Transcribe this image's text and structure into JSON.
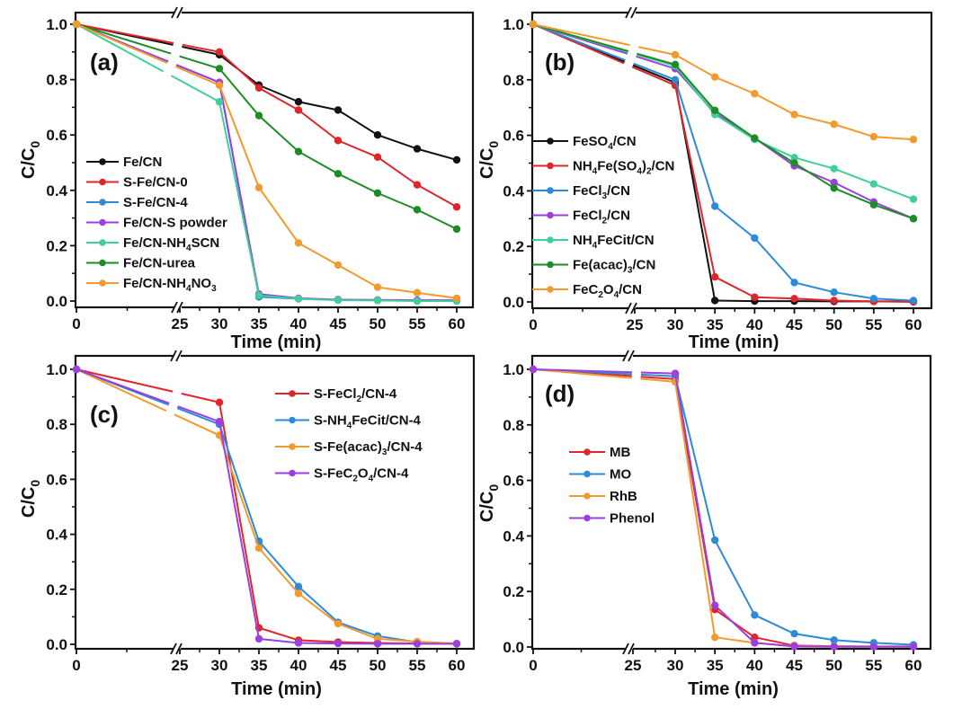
{
  "figure": {
    "background": "#ffffff"
  },
  "chart_data": [
    {
      "id": "a",
      "type": "line",
      "panel_label": "(a)",
      "xlabel": "Time (min)",
      "ylabel": "C/C0",
      "ylabel_main": "C/C",
      "ylabel_sub": "0",
      "x": [
        0,
        30,
        35,
        40,
        45,
        50,
        55,
        60
      ],
      "xticks": [
        0,
        25,
        30,
        35,
        40,
        45,
        50,
        55,
        60
      ],
      "xtick_labels": [
        "0",
        "25",
        "30",
        "35",
        "40",
        "45",
        "50",
        "55",
        "60"
      ],
      "axis_break": [
        0,
        25
      ],
      "yticks": [
        0.0,
        0.2,
        0.4,
        0.6,
        0.8,
        1.0
      ],
      "ytick_labels": [
        "0.0",
        "0.2",
        "0.4",
        "0.6",
        "0.8",
        "1.0"
      ],
      "ylim": [
        0,
        1.0
      ],
      "xlim": [
        0,
        60
      ],
      "grid": false,
      "legend_position": "center-left",
      "series": [
        {
          "name": "Fe/CN",
          "label_parts": [
            [
              "Fe/CN",
              ""
            ]
          ],
          "color": "#111111",
          "values": [
            1.0,
            0.89,
            0.78,
            0.72,
            0.69,
            0.6,
            0.55,
            0.51
          ]
        },
        {
          "name": "S-Fe/CN-0",
          "label_parts": [
            [
              "S-Fe/CN-0",
              ""
            ]
          ],
          "color": "#e0262b",
          "values": [
            1.0,
            0.9,
            0.77,
            0.69,
            0.58,
            0.52,
            0.42,
            0.34
          ]
        },
        {
          "name": "S-Fe/CN-4",
          "label_parts": [
            [
              "S-Fe/CN-4",
              ""
            ]
          ],
          "color": "#2c8ad8",
          "values": [
            1.0,
            0.79,
            0.015,
            0.008,
            0.004,
            0.003,
            0.002,
            0.002
          ]
        },
        {
          "name": "Fe/CN-S powder",
          "label_parts": [
            [
              "Fe/CN-S powder",
              ""
            ]
          ],
          "color": "#9c3fe0",
          "values": [
            1.0,
            0.79,
            0.025,
            0.01,
            0.005,
            0.004,
            0.003,
            0.003
          ]
        },
        {
          "name": "Fe/CN-NH4SCN",
          "label_parts": [
            [
              "Fe/CN-NH",
              ""
            ],
            [
              "4",
              "sub"
            ],
            [
              "SCN",
              ""
            ]
          ],
          "color": "#3fcf9a",
          "values": [
            1.0,
            0.72,
            0.02,
            0.008,
            0.003,
            0.002,
            0.0,
            0.0
          ]
        },
        {
          "name": "Fe/CN-urea",
          "label_parts": [
            [
              "Fe/CN-urea",
              ""
            ]
          ],
          "color": "#1e8c24",
          "values": [
            1.0,
            0.84,
            0.67,
            0.54,
            0.46,
            0.39,
            0.33,
            0.26
          ]
        },
        {
          "name": "Fe/CN-NH4NO3",
          "label_parts": [
            [
              "Fe/CN-NH",
              ""
            ],
            [
              "4",
              "sub"
            ],
            [
              "NO",
              ""
            ],
            [
              "3",
              "sub"
            ]
          ],
          "color": "#f29a2e",
          "values": [
            1.0,
            0.78,
            0.41,
            0.21,
            0.13,
            0.05,
            0.03,
            0.01
          ]
        }
      ]
    },
    {
      "id": "b",
      "type": "line",
      "panel_label": "(b)",
      "xlabel": "Time (min)",
      "ylabel": "C/C0",
      "ylabel_main": "C/C",
      "ylabel_sub": "0",
      "x": [
        0,
        30,
        35,
        40,
        45,
        50,
        55,
        60
      ],
      "xticks": [
        0,
        25,
        30,
        35,
        40,
        45,
        50,
        55,
        60
      ],
      "xtick_labels": [
        "0",
        "25",
        "30",
        "35",
        "40",
        "45",
        "50",
        "55",
        "60"
      ],
      "axis_break": [
        0,
        25
      ],
      "yticks": [
        0.0,
        0.2,
        0.4,
        0.6,
        0.8,
        1.0
      ],
      "ytick_labels": [
        "0.0",
        "0.2",
        "0.4",
        "0.6",
        "0.8",
        "1.0"
      ],
      "ylim": [
        0,
        1.0
      ],
      "xlim": [
        0,
        60
      ],
      "grid": false,
      "legend_position": "center-left",
      "series": [
        {
          "name": "FeSO4/CN",
          "label_parts": [
            [
              "FeSO",
              ""
            ],
            [
              "4",
              "sub"
            ],
            [
              "/CN",
              ""
            ]
          ],
          "color": "#111111",
          "values": [
            1.0,
            0.79,
            0.005,
            0.003,
            0.003,
            0.002,
            0.002,
            0.002
          ]
        },
        {
          "name": "NH4Fe(SO4)2/CN",
          "label_parts": [
            [
              "NH",
              ""
            ],
            [
              "4",
              "sub"
            ],
            [
              "Fe(SO",
              ""
            ],
            [
              "4",
              "sub"
            ],
            [
              ")",
              ""
            ],
            [
              "2",
              "sub"
            ],
            [
              "/CN",
              ""
            ]
          ],
          "color": "#e0262b",
          "values": [
            1.0,
            0.78,
            0.09,
            0.017,
            0.012,
            0.005,
            0.002,
            0.0
          ]
        },
        {
          "name": "FeCl3/CN",
          "label_parts": [
            [
              "FeCl",
              ""
            ],
            [
              "3",
              "sub"
            ],
            [
              "/CN",
              ""
            ]
          ],
          "color": "#2c8ad8",
          "values": [
            1.0,
            0.8,
            0.345,
            0.23,
            0.07,
            0.035,
            0.012,
            0.005
          ]
        },
        {
          "name": "FeCl2/CN",
          "label_parts": [
            [
              "FeCl",
              ""
            ],
            [
              "2",
              "sub"
            ],
            [
              "/CN",
              ""
            ]
          ],
          "color": "#9c3fe0",
          "values": [
            1.0,
            0.84,
            0.68,
            0.59,
            0.49,
            0.43,
            0.36,
            0.3
          ]
        },
        {
          "name": "NH4FeCit/CN",
          "label_parts": [
            [
              "NH",
              ""
            ],
            [
              "4",
              "sub"
            ],
            [
              "FeCit/CN",
              ""
            ]
          ],
          "color": "#3fcf9a",
          "values": [
            1.0,
            0.85,
            0.675,
            0.585,
            0.52,
            0.48,
            0.425,
            0.37
          ]
        },
        {
          "name": "Fe(acac)3/CN",
          "label_parts": [
            [
              "Fe(acac)",
              ""
            ],
            [
              "3",
              "sub"
            ],
            [
              "/CN",
              ""
            ]
          ],
          "color": "#1e8c24",
          "values": [
            1.0,
            0.855,
            0.69,
            0.59,
            0.5,
            0.41,
            0.35,
            0.3
          ]
        },
        {
          "name": "FeC2O4/CN",
          "label_parts": [
            [
              "FeC",
              ""
            ],
            [
              "2",
              "sub"
            ],
            [
              "O",
              ""
            ],
            [
              "4",
              "sub"
            ],
            [
              "/CN",
              ""
            ]
          ],
          "color": "#f29a2e",
          "values": [
            1.0,
            0.89,
            0.81,
            0.75,
            0.675,
            0.64,
            0.595,
            0.585
          ]
        }
      ]
    },
    {
      "id": "c",
      "type": "line",
      "panel_label": "(c)",
      "xlabel": "Time (min)",
      "ylabel": "C/C0",
      "ylabel_main": "C/C",
      "ylabel_sub": "0",
      "x": [
        0,
        30,
        35,
        40,
        45,
        50,
        55,
        60
      ],
      "xticks": [
        0,
        25,
        30,
        35,
        40,
        45,
        50,
        55,
        60
      ],
      "xtick_labels": [
        "0",
        "25",
        "30",
        "35",
        "40",
        "45",
        "50",
        "55",
        "60"
      ],
      "axis_break": [
        0,
        25
      ],
      "yticks": [
        0.0,
        0.2,
        0.4,
        0.6,
        0.8,
        1.0
      ],
      "ytick_labels": [
        "0.0",
        "0.2",
        "0.4",
        "0.6",
        "0.8",
        "1.0"
      ],
      "ylim": [
        0,
        1.0
      ],
      "xlim": [
        0,
        60
      ],
      "grid": false,
      "legend_position": "top-right",
      "series": [
        {
          "name": "S-FeCl2/CN-4",
          "label_parts": [
            [
              "S-FeCl",
              ""
            ],
            [
              "2",
              "sub"
            ],
            [
              "/CN-4",
              ""
            ]
          ],
          "color": "#e0262b",
          "values": [
            1.0,
            0.88,
            0.06,
            0.015,
            0.008,
            0.005,
            0.003,
            0.002
          ]
        },
        {
          "name": "S-NH4FeCit/CN-4",
          "label_parts": [
            [
              "S-NH",
              ""
            ],
            [
              "4",
              "sub"
            ],
            [
              "FeCit/CN-4",
              ""
            ]
          ],
          "color": "#2c8ad8",
          "values": [
            1.0,
            0.8,
            0.375,
            0.21,
            0.08,
            0.03,
            0.008,
            0.003
          ]
        },
        {
          "name": "S-Fe(acac)3/CN-4",
          "label_parts": [
            [
              "S-Fe(acac)",
              ""
            ],
            [
              "3",
              "sub"
            ],
            [
              "/CN-4",
              ""
            ]
          ],
          "color": "#f29a2e",
          "values": [
            1.0,
            0.76,
            0.35,
            0.185,
            0.075,
            0.02,
            0.01,
            0.003
          ]
        },
        {
          "name": "S-FeC2O4/CN-4",
          "label_parts": [
            [
              "S-FeC",
              ""
            ],
            [
              "2",
              "sub"
            ],
            [
              "O",
              ""
            ],
            [
              "4",
              "sub"
            ],
            [
              "/CN-4",
              ""
            ]
          ],
          "color": "#9c3fe0",
          "values": [
            1.0,
            0.81,
            0.02,
            0.005,
            0.003,
            0.002,
            0.002,
            0.002
          ]
        }
      ]
    },
    {
      "id": "d",
      "type": "line",
      "panel_label": "(d)",
      "xlabel": "Time (min)",
      "ylabel": "C/C0",
      "ylabel_main": "C/C",
      "ylabel_sub": "0",
      "x": [
        0,
        30,
        35,
        40,
        45,
        50,
        55,
        60
      ],
      "xticks": [
        0,
        25,
        30,
        35,
        40,
        45,
        50,
        55,
        60
      ],
      "xtick_labels": [
        "0",
        "25",
        "30",
        "35",
        "40",
        "45",
        "50",
        "55",
        "60"
      ],
      "axis_break": [
        0,
        25
      ],
      "yticks": [
        0.0,
        0.2,
        0.4,
        0.6,
        0.8,
        1.0
      ],
      "ytick_labels": [
        "0.0",
        "0.2",
        "0.4",
        "0.6",
        "0.8",
        "1.0"
      ],
      "ylim": [
        0,
        1.0
      ],
      "xlim": [
        0,
        60
      ],
      "grid": false,
      "legend_position": "center-left",
      "series": [
        {
          "name": "MB",
          "label_parts": [
            [
              "MB",
              ""
            ]
          ],
          "color": "#e0262b",
          "values": [
            1.0,
            0.965,
            0.135,
            0.035,
            0.005,
            0.003,
            0.002,
            0.002
          ]
        },
        {
          "name": "MO",
          "label_parts": [
            [
              "MO",
              ""
            ]
          ],
          "color": "#2c8ad8",
          "values": [
            1.0,
            0.975,
            0.385,
            0.115,
            0.048,
            0.025,
            0.015,
            0.008
          ]
        },
        {
          "name": "RhB",
          "label_parts": [
            [
              "RhB",
              ""
            ]
          ],
          "color": "#f29a2e",
          "values": [
            1.0,
            0.955,
            0.035,
            0.015,
            0.003,
            0.002,
            0.001,
            0.001
          ]
        },
        {
          "name": "Phenol",
          "label_parts": [
            [
              "Phenol",
              ""
            ]
          ],
          "color": "#9c3fe0",
          "values": [
            1.0,
            0.985,
            0.15,
            0.015,
            0.002,
            0.001,
            0.001,
            0.001
          ]
        }
      ]
    }
  ]
}
